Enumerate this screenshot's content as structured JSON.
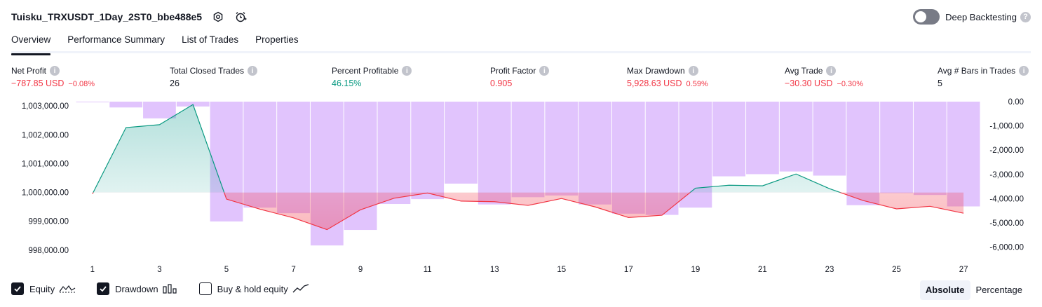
{
  "header": {
    "strategy_title": "Tuisku_TRXUSDT_1Day_2ST0_bbe488e5",
    "deep_backtesting_label": "Deep Backtesting",
    "help_glyph": "?"
  },
  "tabs": [
    {
      "label": "Overview",
      "active": true
    },
    {
      "label": "Performance Summary",
      "active": false
    },
    {
      "label": "List of Trades",
      "active": false
    },
    {
      "label": "Properties",
      "active": false
    }
  ],
  "metrics": {
    "net_profit": {
      "label": "Net Profit",
      "value": "−787.85 USD",
      "pct": "−0.08%"
    },
    "total_closed_trades": {
      "label": "Total Closed Trades",
      "value": "26"
    },
    "percent_profitable": {
      "label": "Percent Profitable",
      "value": "46.15%"
    },
    "profit_factor": {
      "label": "Profit Factor",
      "value": "0.905"
    },
    "max_drawdown": {
      "label": "Max Drawdown",
      "value": "5,928.63 USD",
      "pct": "0.59%"
    },
    "avg_trade": {
      "label": "Avg Trade",
      "value": "−30.30 USD",
      "pct": "−0.30%"
    },
    "avg_bars": {
      "label": "Avg # Bars in Trades",
      "value": "5"
    }
  },
  "info_glyph": "i",
  "legend": {
    "equity_label": "Equity",
    "drawdown_label": "Drawdown",
    "buy_hold_label": "Buy & hold equity"
  },
  "mode": {
    "absolute_label": "Absolute",
    "percentage_label": "Percentage"
  },
  "colors": {
    "positive": "#089981",
    "negative": "#f23645",
    "drawdown_bar": "#e1c4fd",
    "equity_pos_fill": "#26a69a",
    "equity_neg_fill": "#f23645"
  },
  "chart_data": {
    "type": "line+bar",
    "x": [
      1,
      2,
      3,
      4,
      5,
      6,
      7,
      8,
      9,
      10,
      11,
      12,
      13,
      14,
      15,
      16,
      17,
      18,
      19,
      20,
      21,
      22,
      23,
      24,
      25,
      26,
      27
    ],
    "x_tick_labels": [
      "1",
      "3",
      "5",
      "7",
      "9",
      "11",
      "13",
      "15",
      "17",
      "19",
      "21",
      "23",
      "25",
      "27"
    ],
    "equity_baseline": 1000000,
    "series": [
      {
        "axis": "left",
        "values": [
          999950,
          1002250,
          1002350,
          1003050,
          999770,
          999420,
          999120,
          998710,
          999400,
          999800,
          999980,
          999700,
          999680,
          999550,
          999790,
          999500,
          999130,
          999210,
          1000150,
          1000250,
          1000230,
          1000640,
          1000130,
          999720,
          999430,
          999520,
          999280
        ]
      },
      {
        "axis": "right",
        "values": [
          -20,
          -240,
          -690,
          -200,
          -4940,
          -4370,
          -4600,
          -5930,
          -5290,
          -4220,
          -4020,
          -3380,
          -4240,
          -3940,
          -3870,
          -4240,
          -4620,
          -4670,
          -4370,
          -3080,
          -2990,
          -2880,
          -3050,
          -4270,
          -3770,
          -3850,
          -4320
        ]
      }
    ],
    "y_left": {
      "min": 997850,
      "max": 1003150,
      "ticks": [
        998000,
        999000,
        1000000,
        1001000,
        1002000,
        1003000
      ],
      "tick_labels": [
        "998,000.00",
        "999,000.00",
        "1,000,000.00",
        "1,001,000.00",
        "1,002,000.00",
        "1,003,000.00"
      ]
    },
    "y_right": {
      "min": -6300,
      "max": 0,
      "ticks": [
        0,
        -1000,
        -2000,
        -3000,
        -4000,
        -5000,
        -6000
      ],
      "tick_labels": [
        "0.00",
        "-1,000.00",
        "-2,000.00",
        "-3,000.00",
        "-4,000.00",
        "-5,000.00",
        "-6,000.00"
      ]
    }
  }
}
